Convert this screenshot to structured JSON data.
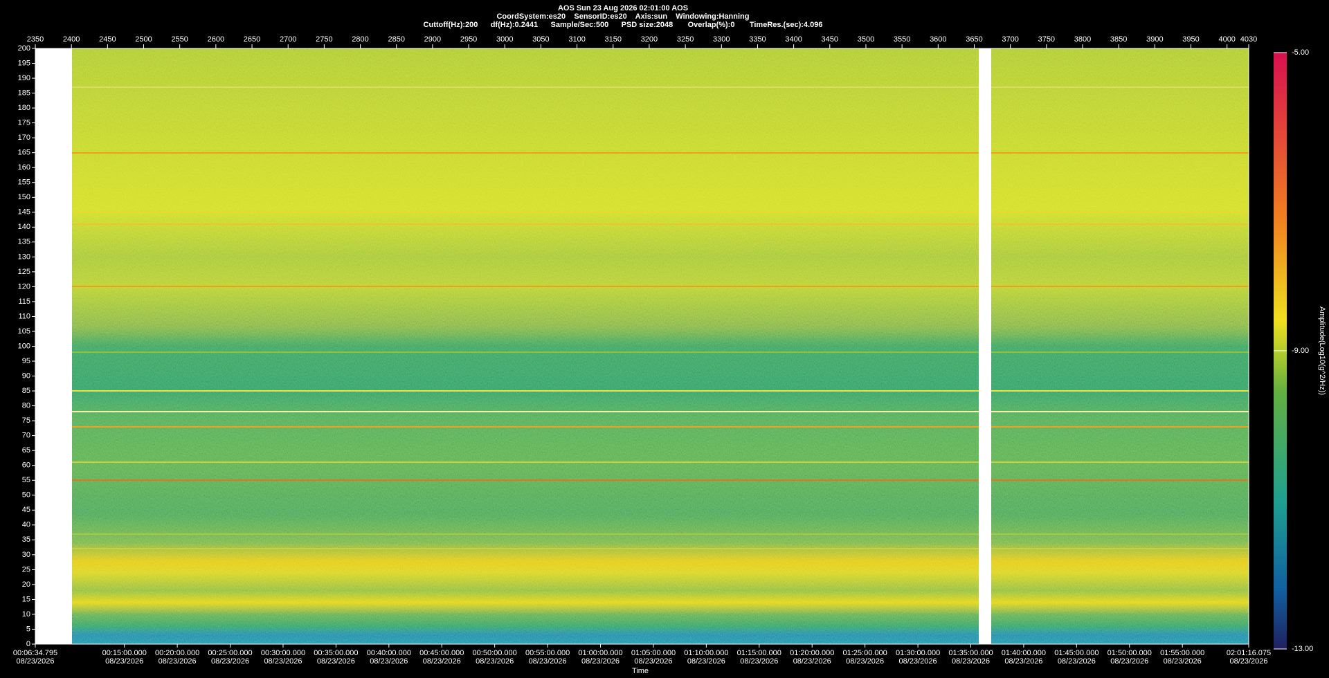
{
  "chart_data": {
    "type": "spectrogram",
    "title": "AOS  Sun 23 Aug 2026 02:01:00  AOS",
    "subtitle": "CoordSystem:es20    SensorID:es20    Axis:sun    Windowing:Hanning",
    "info": "Cuttoff(Hz):200      df(Hz):0.2441      Sample/Sec:500      PSD size:2048       Overlap(%):0       TimeRes.(sec):4.096",
    "xlim": [
      2350,
      4030
    ],
    "xticks": [
      2350,
      2400,
      2450,
      2500,
      2550,
      2600,
      2650,
      2700,
      2750,
      2800,
      2850,
      2900,
      2950,
      3000,
      3050,
      3100,
      3150,
      3200,
      3250,
      3300,
      3350,
      3400,
      3450,
      3500,
      3550,
      3600,
      3650,
      3700,
      3750,
      3800,
      3850,
      3900,
      3950,
      4000,
      4030
    ],
    "ylim": [
      0,
      200
    ],
    "yticks": [
      0,
      5,
      10,
      15,
      20,
      25,
      30,
      35,
      40,
      45,
      50,
      55,
      60,
      65,
      70,
      75,
      80,
      85,
      90,
      95,
      100,
      105,
      110,
      115,
      120,
      125,
      130,
      135,
      140,
      145,
      150,
      155,
      160,
      165,
      170,
      175,
      180,
      185,
      190,
      195,
      200
    ],
    "xlabel": "Time",
    "time_lim": [
      394.795,
      7276.075
    ],
    "time_date": "08/23/2026",
    "time_ticks": [
      {
        "value": 394.795,
        "label": "00:06:34.795"
      },
      {
        "value": 900,
        "label": "00:15:00.000"
      },
      {
        "value": 1200,
        "label": "00:20:00.000"
      },
      {
        "value": 1500,
        "label": "00:25:00.000"
      },
      {
        "value": 1800,
        "label": "00:30:00.000"
      },
      {
        "value": 2100,
        "label": "00:35:00.000"
      },
      {
        "value": 2400,
        "label": "00:40:00.000"
      },
      {
        "value": 2700,
        "label": "00:45:00.000"
      },
      {
        "value": 3000,
        "label": "00:50:00.000"
      },
      {
        "value": 3300,
        "label": "00:55:00.000"
      },
      {
        "value": 3600,
        "label": "01:00:00.000"
      },
      {
        "value": 3900,
        "label": "01:05:00.000"
      },
      {
        "value": 4200,
        "label": "01:10:00.000"
      },
      {
        "value": 4500,
        "label": "01:15:00.000"
      },
      {
        "value": 4800,
        "label": "01:20:00.000"
      },
      {
        "value": 5100,
        "label": "01:25:00.000"
      },
      {
        "value": 5400,
        "label": "01:30:00.000"
      },
      {
        "value": 5700,
        "label": "01:35:00.000"
      },
      {
        "value": 6000,
        "label": "01:40:00.000"
      },
      {
        "value": 6300,
        "label": "01:45:00.000"
      },
      {
        "value": 6600,
        "label": "01:50:00.000"
      },
      {
        "value": 6900,
        "label": "01:55:00.000"
      },
      {
        "value": 7276.075,
        "label": "02:01:16.075"
      }
    ],
    "colorbar": {
      "label": "Amplitude(Log10(g^2/Hz))",
      "lim": [
        -13,
        -5
      ],
      "ticks": [
        {
          "value": -5,
          "label": "-5.00"
        },
        {
          "value": -9,
          "label": "-9.00"
        },
        {
          "value": -13,
          "label": "-13.00"
        }
      ]
    }
  }
}
